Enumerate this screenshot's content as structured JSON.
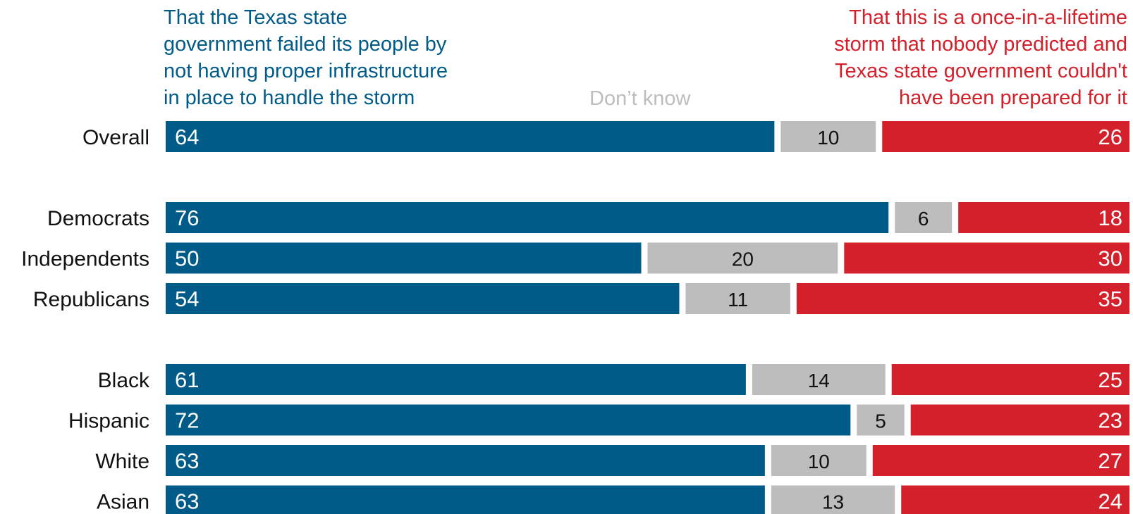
{
  "chart_data": {
    "type": "bar",
    "stacked": true,
    "orientation": "horizontal",
    "title": "",
    "xlabel": "",
    "ylabel": "",
    "xlim": [
      0,
      100
    ],
    "legend": {
      "left_header": "That the Texas state\ngovernment failed its people by\nnot having proper infrastructure\nin place to handle the storm",
      "middle_header": "Don’t know",
      "right_header": "That this is a once-in-a-lifetime\nstorm that nobody predicted and\nTexas state government couldn't\nhave been prepared for it"
    },
    "categories": [
      "Overall",
      "Democrats",
      "Independents",
      "Republicans",
      "Black",
      "Hispanic",
      "White",
      "Asian"
    ],
    "groups": [
      [
        "Overall"
      ],
      [
        "Democrats",
        "Independents",
        "Republicans"
      ],
      [
        "Black",
        "Hispanic",
        "White",
        "Asian"
      ]
    ],
    "series": [
      {
        "key": "failed",
        "color": "#005b89",
        "values": [
          64,
          76,
          50,
          54,
          61,
          72,
          63,
          63
        ]
      },
      {
        "key": "dont_know",
        "color": "#bdbdbd",
        "values": [
          10,
          6,
          20,
          11,
          14,
          5,
          10,
          13
        ]
      },
      {
        "key": "unpredictable",
        "color": "#d3202a",
        "values": [
          26,
          18,
          30,
          35,
          25,
          23,
          27,
          24
        ]
      }
    ]
  }
}
